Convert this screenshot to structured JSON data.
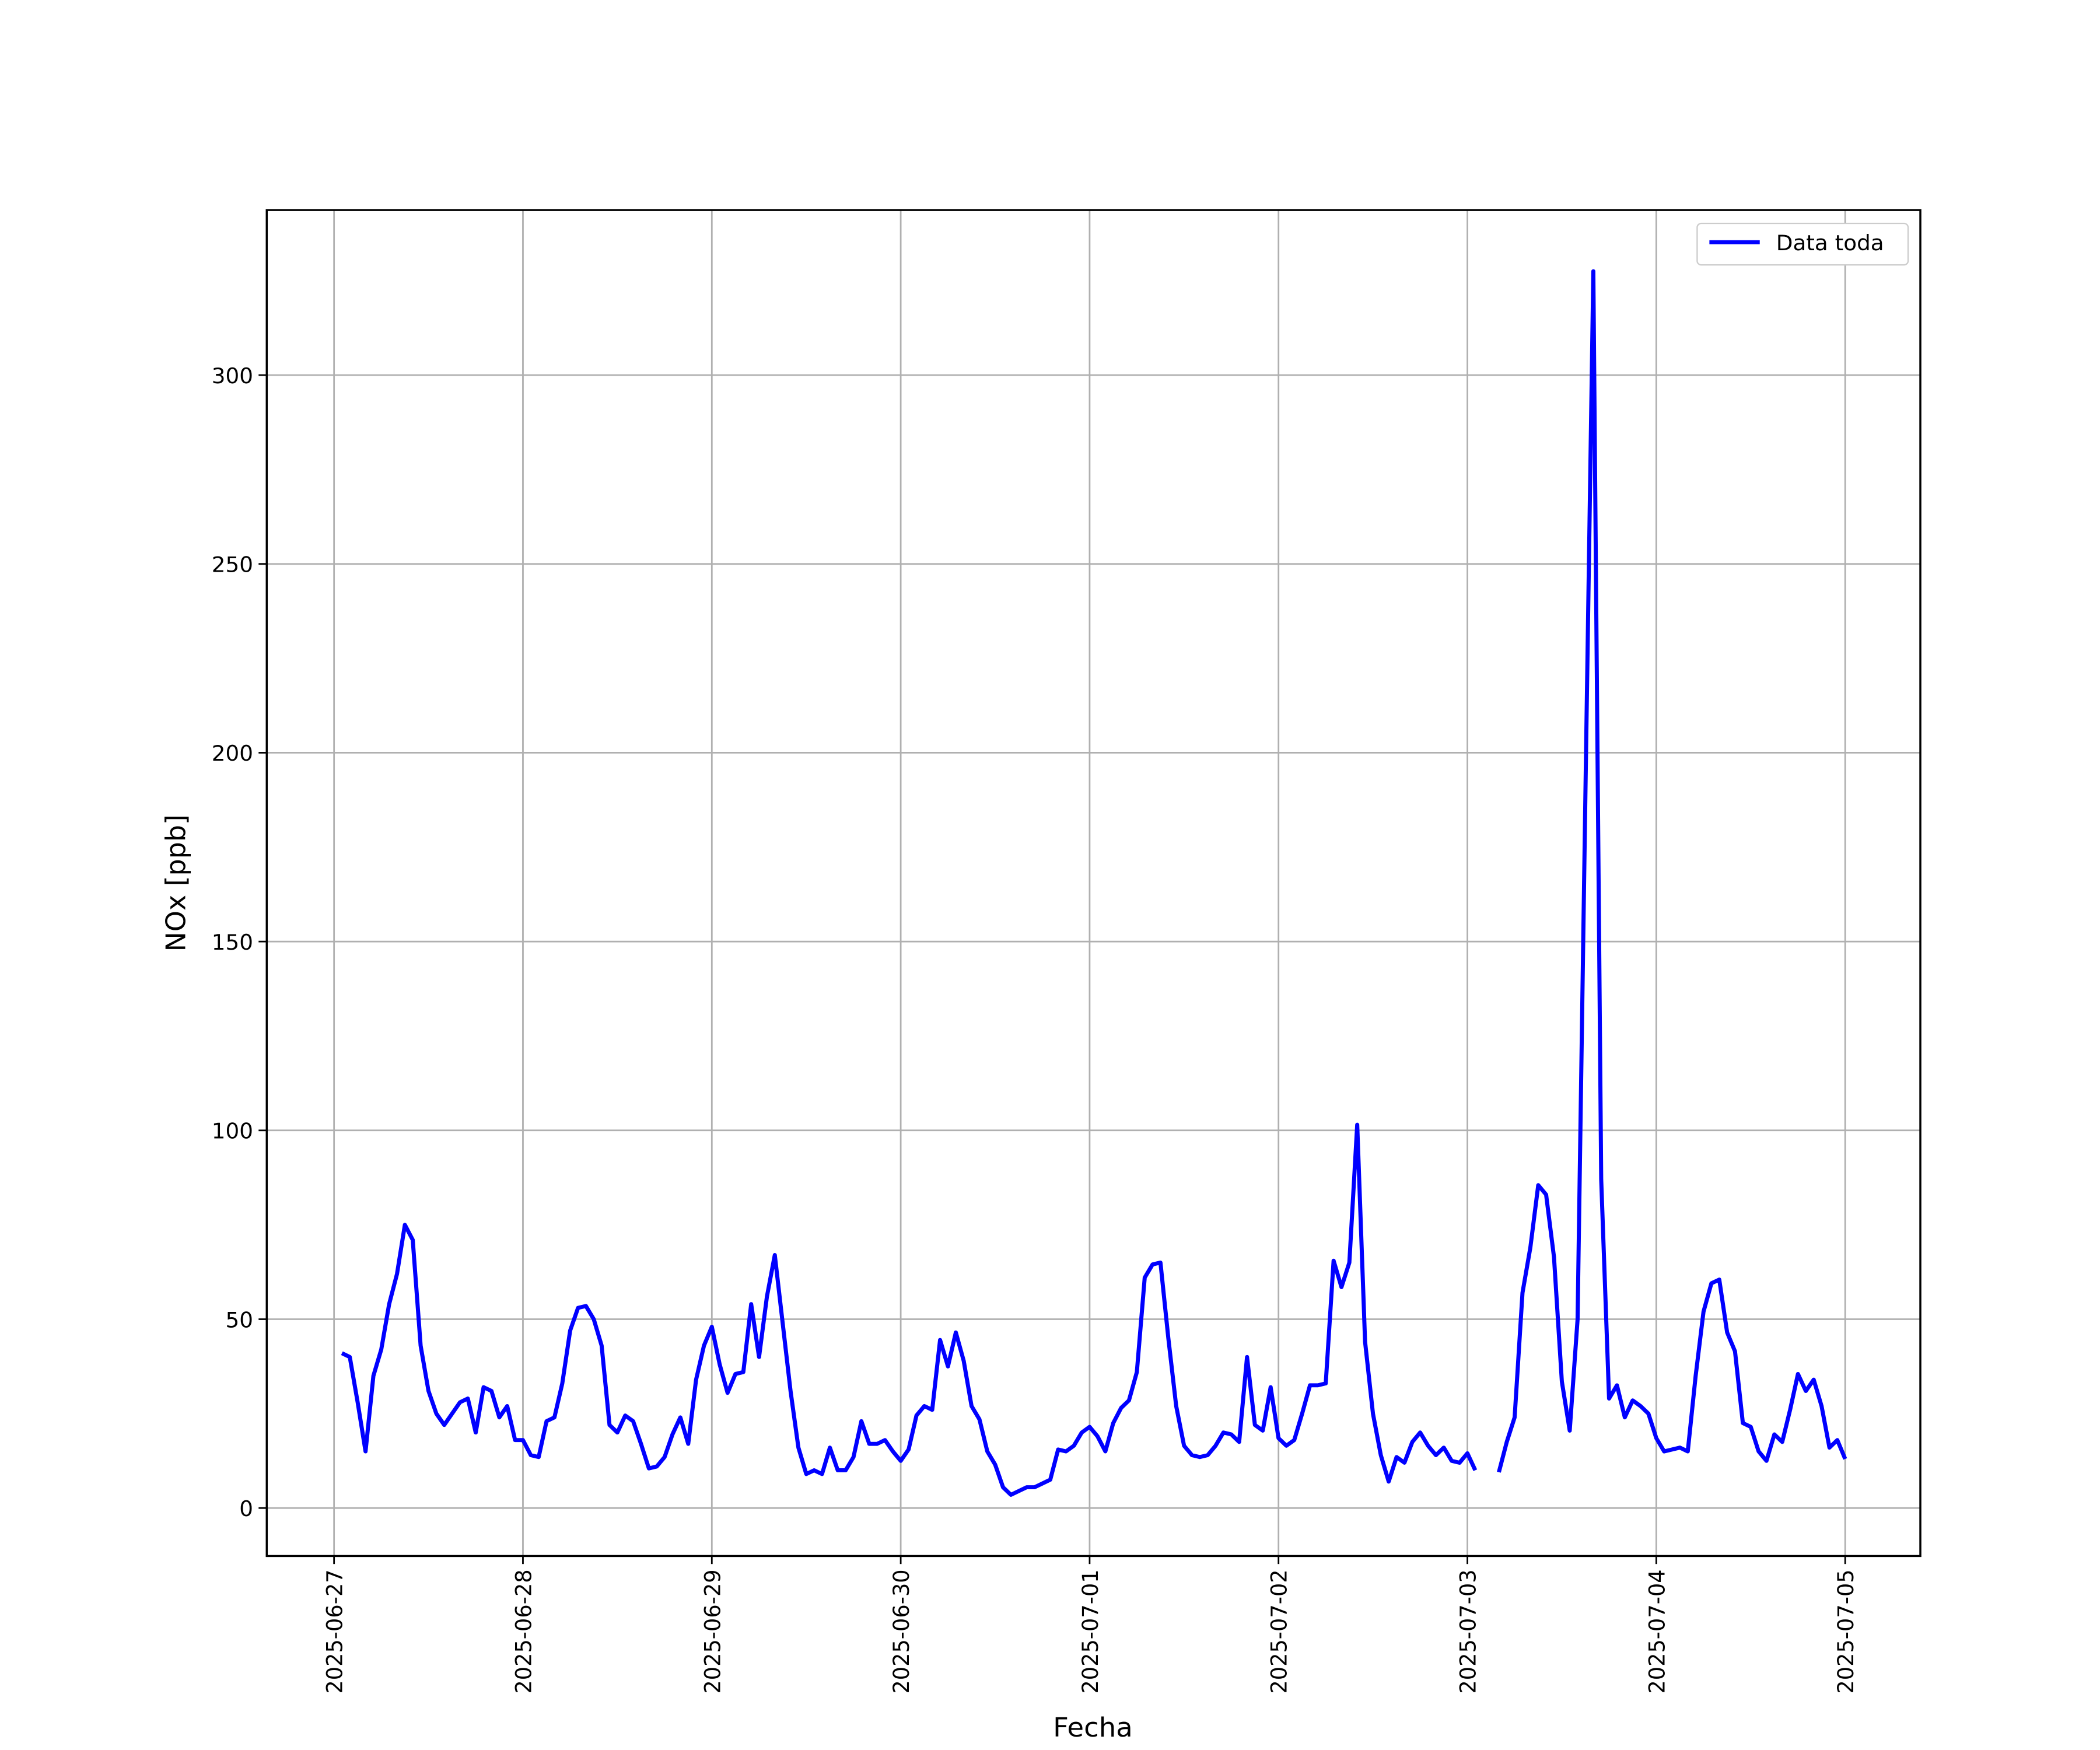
{
  "chart_data": {
    "type": "line",
    "xlabel": "Fecha",
    "ylabel": "NOx [ppb]",
    "x": [
      "2025-06-27 01:00",
      "2025-06-27 02:00",
      "2025-06-27 03:00",
      "2025-06-27 04:00",
      "2025-06-27 05:00",
      "2025-06-27 06:00",
      "2025-06-27 07:00",
      "2025-06-27 08:00",
      "2025-06-27 09:00",
      "2025-06-27 10:00",
      "2025-06-27 11:00",
      "2025-06-27 12:00",
      "2025-06-27 13:00",
      "2025-06-27 14:00",
      "2025-06-27 15:00",
      "2025-06-27 16:00",
      "2025-06-27 17:00",
      "2025-06-27 18:00",
      "2025-06-27 19:00",
      "2025-06-27 20:00",
      "2025-06-27 21:00",
      "2025-06-27 22:00",
      "2025-06-27 23:00",
      "2025-06-28 00:00",
      "2025-06-28 01:00",
      "2025-06-28 02:00",
      "2025-06-28 03:00",
      "2025-06-28 04:00",
      "2025-06-28 05:00",
      "2025-06-28 06:00",
      "2025-06-28 07:00",
      "2025-06-28 08:00",
      "2025-06-28 09:00",
      "2025-06-28 10:00",
      "2025-06-28 11:00",
      "2025-06-28 12:00",
      "2025-06-28 13:00",
      "2025-06-28 14:00",
      "2025-06-28 15:00",
      "2025-06-28 16:00",
      "2025-06-28 17:00",
      "2025-06-28 18:00",
      "2025-06-28 19:00",
      "2025-06-28 20:00",
      "2025-06-28 21:00",
      "2025-06-28 22:00",
      "2025-06-28 23:00",
      "2025-06-29 00:00",
      "2025-06-29 01:00",
      "2025-06-29 02:00",
      "2025-06-29 03:00",
      "2025-06-29 04:00",
      "2025-06-29 05:00",
      "2025-06-29 06:00",
      "2025-06-29 07:00",
      "2025-06-29 08:00",
      "2025-06-29 09:00",
      "2025-06-29 10:00",
      "2025-06-29 11:00",
      "2025-06-29 12:00",
      "2025-06-29 13:00",
      "2025-06-29 14:00",
      "2025-06-29 15:00",
      "2025-06-29 16:00",
      "2025-06-29 17:00",
      "2025-06-29 18:00",
      "2025-06-29 19:00",
      "2025-06-29 20:00",
      "2025-06-29 21:00",
      "2025-06-29 22:00",
      "2025-06-29 23:00",
      "2025-06-30 00:00",
      "2025-06-30 01:00",
      "2025-06-30 02:00",
      "2025-06-30 03:00",
      "2025-06-30 04:00",
      "2025-06-30 05:00",
      "2025-06-30 06:00",
      "2025-06-30 07:00",
      "2025-06-30 08:00",
      "2025-06-30 09:00",
      "2025-06-30 10:00",
      "2025-06-30 11:00",
      "2025-06-30 12:00",
      "2025-06-30 13:00",
      "2025-06-30 14:00",
      "2025-06-30 15:00",
      "2025-06-30 16:00",
      "2025-06-30 17:00",
      "2025-06-30 18:00",
      "2025-06-30 19:00",
      "2025-06-30 20:00",
      "2025-06-30 21:00",
      "2025-06-30 22:00",
      "2025-06-30 23:00",
      "2025-07-01 00:00",
      "2025-07-01 01:00",
      "2025-07-01 02:00",
      "2025-07-01 03:00",
      "2025-07-01 04:00",
      "2025-07-01 05:00",
      "2025-07-01 06:00",
      "2025-07-01 07:00",
      "2025-07-01 08:00",
      "2025-07-01 09:00",
      "2025-07-01 10:00",
      "2025-07-01 11:00",
      "2025-07-01 12:00",
      "2025-07-01 13:00",
      "2025-07-01 14:00",
      "2025-07-01 15:00",
      "2025-07-01 16:00",
      "2025-07-01 17:00",
      "2025-07-01 18:00",
      "2025-07-01 19:00",
      "2025-07-01 20:00",
      "2025-07-01 21:00",
      "2025-07-01 22:00",
      "2025-07-01 23:00",
      "2025-07-02 00:00",
      "2025-07-02 01:00",
      "2025-07-02 02:00",
      "2025-07-02 03:00",
      "2025-07-02 04:00",
      "2025-07-02 05:00",
      "2025-07-02 06:00",
      "2025-07-02 07:00",
      "2025-07-02 08:00",
      "2025-07-02 09:00",
      "2025-07-02 10:00",
      "2025-07-02 11:00",
      "2025-07-02 12:00",
      "2025-07-02 13:00",
      "2025-07-02 14:00",
      "2025-07-02 15:00",
      "2025-07-02 16:00",
      "2025-07-02 17:00",
      "2025-07-02 18:00",
      "2025-07-02 19:00",
      "2025-07-02 20:00",
      "2025-07-02 21:00",
      "2025-07-02 22:00",
      "2025-07-02 23:00",
      "2025-07-03 00:00",
      "2025-07-03 01:00",
      "2025-07-03 02:00",
      "2025-07-03 03:00",
      "2025-07-03 04:00",
      "2025-07-03 05:00",
      "2025-07-03 06:00",
      "2025-07-03 07:00",
      "2025-07-03 08:00",
      "2025-07-03 09:00",
      "2025-07-03 10:00",
      "2025-07-03 11:00",
      "2025-07-03 12:00",
      "2025-07-03 13:00",
      "2025-07-03 14:00",
      "2025-07-03 15:00",
      "2025-07-03 16:00",
      "2025-07-03 17:00",
      "2025-07-03 18:00",
      "2025-07-03 19:00",
      "2025-07-03 20:00",
      "2025-07-03 21:00",
      "2025-07-03 22:00",
      "2025-07-03 23:00",
      "2025-07-04 00:00",
      "2025-07-04 01:00",
      "2025-07-04 02:00",
      "2025-07-04 03:00",
      "2025-07-04 04:00",
      "2025-07-04 05:00",
      "2025-07-04 06:00",
      "2025-07-04 07:00",
      "2025-07-04 08:00",
      "2025-07-04 09:00",
      "2025-07-04 10:00",
      "2025-07-04 11:00",
      "2025-07-04 12:00",
      "2025-07-04 13:00",
      "2025-07-04 14:00",
      "2025-07-04 15:00",
      "2025-07-04 16:00",
      "2025-07-04 17:00",
      "2025-07-04 18:00",
      "2025-07-04 19:00",
      "2025-07-04 20:00",
      "2025-07-04 21:00",
      "2025-07-04 22:00",
      "2025-07-04 23:00",
      "2025-07-05 00:00"
    ],
    "series": [
      {
        "name": "Data toda",
        "color": "#0000ff",
        "values": [
          41,
          40,
          28,
          15,
          35,
          42,
          54,
          62,
          75,
          71,
          43,
          31,
          25,
          22,
          25,
          28,
          29,
          20,
          32,
          31,
          24,
          27,
          18,
          18,
          14,
          13.5,
          23,
          24,
          33,
          47,
          53,
          53.5,
          50,
          43,
          22,
          20,
          24.5,
          23,
          17,
          10.5,
          11,
          13.5,
          19.5,
          24,
          17,
          34,
          43,
          48,
          38,
          30.5,
          35.5,
          36,
          54,
          40,
          56,
          67,
          49,
          31,
          16,
          9,
          10,
          9,
          16,
          10,
          10,
          13.5,
          23,
          17,
          17,
          18,
          15,
          12.5,
          15.5,
          24.5,
          27,
          26,
          44.5,
          37.5,
          46.5,
          39,
          27,
          23.5,
          15,
          11.5,
          5.5,
          3.5,
          4.5,
          5.5,
          5.5,
          6.5,
          7.5,
          15.5,
          15,
          16.5,
          20,
          21.5,
          19,
          15,
          22.5,
          26.5,
          28.5,
          36,
          61,
          64.5,
          65,
          45,
          27,
          16.5,
          14,
          13.5,
          14,
          16.5,
          20,
          19.5,
          17.5,
          40,
          22,
          20.5,
          32,
          18.5,
          16.5,
          18,
          25,
          32.5,
          32.5,
          33,
          65.5,
          58.5,
          65,
          101.5,
          44,
          25,
          14,
          7,
          13.5,
          12,
          17.5,
          20,
          16.5,
          14,
          16,
          12.5,
          12,
          14.5,
          10,
          null,
          null,
          9.5,
          17.5,
          24,
          57,
          69,
          85.5,
          83,
          66.5,
          33.5,
          20.5,
          50,
          190,
          327.5,
          87,
          29,
          32.5,
          24,
          28.5,
          27,
          25,
          18.5,
          15,
          15.5,
          16,
          15,
          35,
          52,
          59.5,
          60.5,
          46.5,
          41.5,
          22.5,
          21.5,
          15,
          12.5,
          19.5,
          17.5,
          26,
          35.5,
          31,
          34,
          27,
          16,
          18,
          13
        ]
      }
    ],
    "xlim": [
      "2025-06-26 15:27",
      "2025-07-05 09:33"
    ],
    "xticks": [
      "2025-06-27",
      "2025-06-28",
      "2025-06-29",
      "2025-06-30",
      "2025-07-01",
      "2025-07-02",
      "2025-07-03",
      "2025-07-04",
      "2025-07-05"
    ],
    "ylim": [
      -12.7,
      343.7
    ],
    "yticks": [
      0,
      50,
      100,
      150,
      200,
      250,
      300
    ],
    "grid": true,
    "legend": "upper right"
  }
}
